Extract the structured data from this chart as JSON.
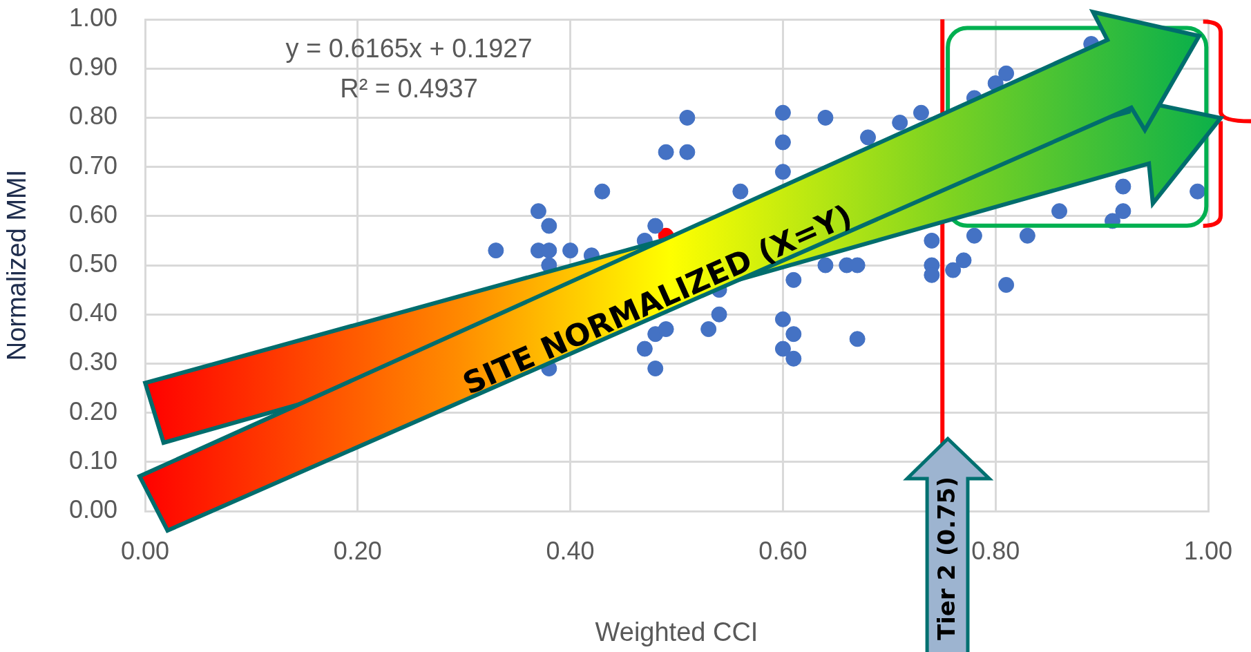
{
  "chart_data": {
    "type": "scatter",
    "xlabel": "Weighted CCI",
    "ylabel": "Normalized MMI",
    "xlim": [
      0,
      1
    ],
    "ylim": [
      0,
      1
    ],
    "xticks": [
      {
        "value": 0,
        "label": "0.00"
      },
      {
        "value": 0.2,
        "label": "0.20"
      },
      {
        "value": 0.4,
        "label": "0.40"
      },
      {
        "value": 0.6,
        "label": "0.60"
      },
      {
        "value": 0.8,
        "label": "0.80"
      },
      {
        "value": 1,
        "label": "1.00"
      }
    ],
    "yticks": [
      {
        "value": 0,
        "label": "0.00"
      },
      {
        "value": 0.1,
        "label": "0.10"
      },
      {
        "value": 0.2,
        "label": "0.20"
      },
      {
        "value": 0.3,
        "label": "0.30"
      },
      {
        "value": 0.4,
        "label": "0.40"
      },
      {
        "value": 0.5,
        "label": "0.50"
      },
      {
        "value": 0.6,
        "label": "0.60"
      },
      {
        "value": 0.7,
        "label": "0.70"
      },
      {
        "value": 0.8,
        "label": "0.80"
      },
      {
        "value": 0.9,
        "label": "0.90"
      },
      {
        "value": 1,
        "label": "1.00"
      }
    ],
    "grid": true,
    "legend": false,
    "marker": "circle",
    "series": [
      {
        "color": "#4472c4",
        "x": [
          0.33,
          0.37,
          0.38,
          0.37,
          0.38,
          0.38,
          0.4,
          0.42,
          0.43,
          0.38,
          0.47,
          0.48,
          0.49,
          0.51,
          0.51,
          0.47,
          0.48,
          0.48,
          0.49,
          0.53,
          0.54,
          0.54,
          0.56,
          0.6,
          0.6,
          0.6,
          0.64,
          0.6,
          0.6,
          0.61,
          0.61,
          0.67,
          0.61,
          0.64,
          0.66,
          0.67,
          0.68,
          0.71,
          0.73,
          0.74,
          0.74,
          0.74,
          0.76,
          0.77,
          0.78,
          0.83,
          0.81,
          0.78,
          0.8,
          0.81,
          0.86,
          0.89,
          0.92,
          0.92,
          0.91,
          0.99
        ],
        "values": [
          0.53,
          0.61,
          0.58,
          0.53,
          0.53,
          0.5,
          0.53,
          0.52,
          0.65,
          0.29,
          0.55,
          0.58,
          0.73,
          0.73,
          0.8,
          0.33,
          0.29,
          0.36,
          0.37,
          0.37,
          0.4,
          0.45,
          0.65,
          0.81,
          0.75,
          0.69,
          0.8,
          0.39,
          0.33,
          0.36,
          0.31,
          0.35,
          0.47,
          0.5,
          0.5,
          0.5,
          0.76,
          0.79,
          0.81,
          0.55,
          0.5,
          0.48,
          0.49,
          0.51,
          0.56,
          0.56,
          0.46,
          0.84,
          0.87,
          0.89,
          0.61,
          0.95,
          0.66,
          0.61,
          0.59,
          0.65
        ]
      },
      {
        "color": "#ff0000",
        "x": [
          0.49
        ],
        "values": [
          0.56
        ]
      }
    ],
    "ref_lines": [
      {
        "axis": "x",
        "value": 0.75,
        "label": "Tier 2 (0.75)",
        "color": "#ff0000"
      }
    ],
    "annotations": [
      "y = 0.6165x + 0.1927",
      "R² = 0.4937",
      "SITE NORMALIZED (X=Y)"
    ]
  }
}
